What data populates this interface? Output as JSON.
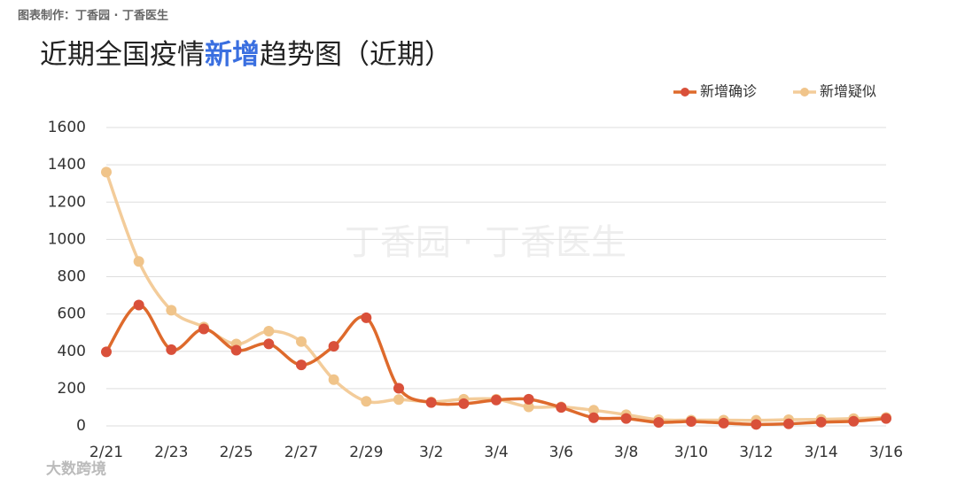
{
  "source": "图表制作：丁香园 · 丁香医生",
  "watermark": "丁香园 · 丁香医生",
  "corner_logo": "大数跨境",
  "chart_data": {
    "type": "line",
    "title_segments": [
      "近期全国疫情",
      "新增",
      "趋势图（近期）"
    ],
    "title_highlight_color": "#3a6fe0",
    "categories": [
      "2/21",
      null,
      "2/23",
      null,
      "2/25",
      null,
      "2/27",
      null,
      "2/29",
      null,
      "3/2",
      null,
      "3/4",
      null,
      "3/6",
      null,
      "3/8",
      null,
      "3/10",
      null,
      "3/12",
      null,
      "3/14",
      null,
      "3/16"
    ],
    "series": [
      {
        "name": "新增确诊",
        "color": "#de6a2c",
        "marker_color": "#d9503a",
        "values": [
          397,
          648,
          409,
          520,
          406,
          440,
          327,
          427,
          580,
          202,
          125,
          119,
          139,
          143,
          99,
          44,
          40,
          19,
          24,
          15,
          8,
          11,
          20,
          25,
          40
        ]
      },
      {
        "name": "新增疑似",
        "color": "#f3cc9a",
        "marker_color": "#f0c48a",
        "values": [
          1361,
          882,
          620,
          530,
          439,
          508,
          452,
          248,
          132,
          141,
          129,
          143,
          143,
          102,
          102,
          84,
          60,
          33,
          31,
          31,
          30,
          33,
          35,
          39,
          45
        ]
      }
    ],
    "ylim": [
      0,
      1600
    ],
    "yticks": [
      0,
      200,
      400,
      600,
      800,
      1000,
      1200,
      1400,
      1600
    ],
    "grid": true,
    "legend_position": "top-right"
  }
}
